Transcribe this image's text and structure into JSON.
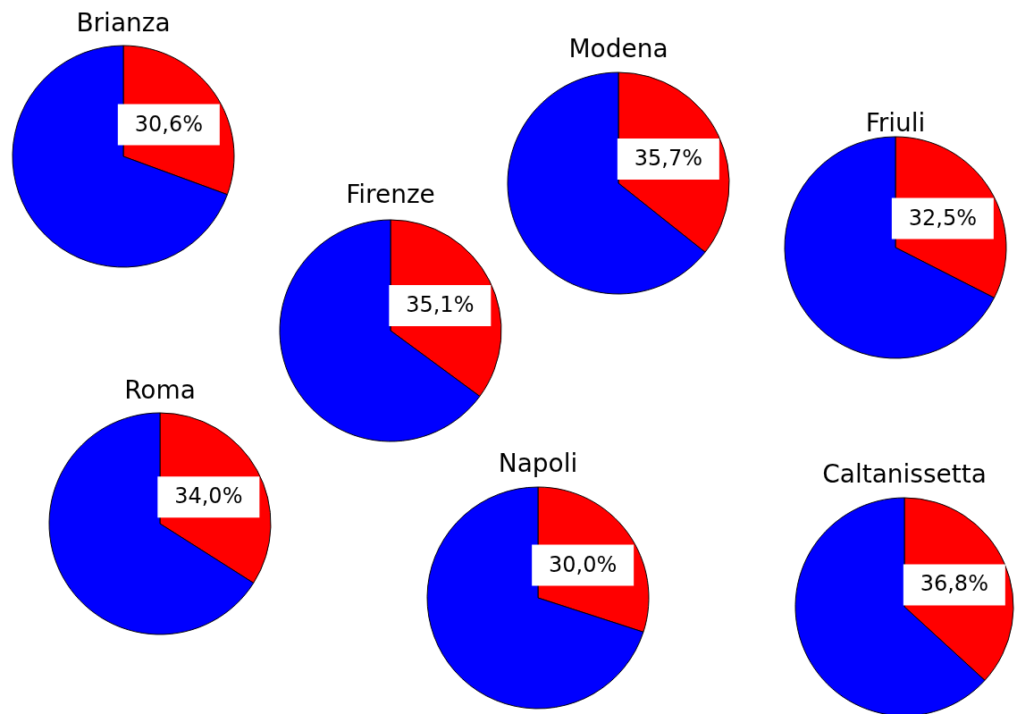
{
  "chart_data": [
    {
      "type": "pie",
      "title": "Brianza",
      "categories": [
        null,
        null
      ],
      "values": [
        30.6,
        69.4
      ],
      "colors": [
        "#ff0000",
        "#0000ff"
      ],
      "value_labels": [
        "30,6%",
        null
      ]
    },
    {
      "type": "pie",
      "title": "Firenze",
      "categories": [
        null,
        null
      ],
      "values": [
        35.1,
        64.9
      ],
      "colors": [
        "#ff0000",
        "#0000ff"
      ],
      "value_labels": [
        "35,1%",
        null
      ]
    },
    {
      "type": "pie",
      "title": "Modena",
      "categories": [
        null,
        null
      ],
      "values": [
        35.7,
        64.3
      ],
      "colors": [
        "#ff0000",
        "#0000ff"
      ],
      "value_labels": [
        "35,7%",
        null
      ]
    },
    {
      "type": "pie",
      "title": "Friuli",
      "categories": [
        null,
        null
      ],
      "values": [
        32.5,
        67.5
      ],
      "colors": [
        "#ff0000",
        "#0000ff"
      ],
      "value_labels": [
        "32,5%",
        null
      ]
    },
    {
      "type": "pie",
      "title": "Roma",
      "categories": [
        null,
        null
      ],
      "values": [
        34.0,
        66.0
      ],
      "colors": [
        "#ff0000",
        "#0000ff"
      ],
      "value_labels": [
        "34,0%",
        null
      ]
    },
    {
      "type": "pie",
      "title": "Napoli",
      "categories": [
        null,
        null
      ],
      "values": [
        30.0,
        70.0
      ],
      "colors": [
        "#ff0000",
        "#0000ff"
      ],
      "value_labels": [
        "30,0%",
        null
      ]
    },
    {
      "type": "pie",
      "title": "Caltanissetta",
      "categories": [
        null,
        null
      ],
      "values": [
        36.8,
        63.2
      ],
      "colors": [
        "#ff0000",
        "#0000ff"
      ],
      "value_labels": [
        "36,8%",
        null
      ]
    }
  ]
}
